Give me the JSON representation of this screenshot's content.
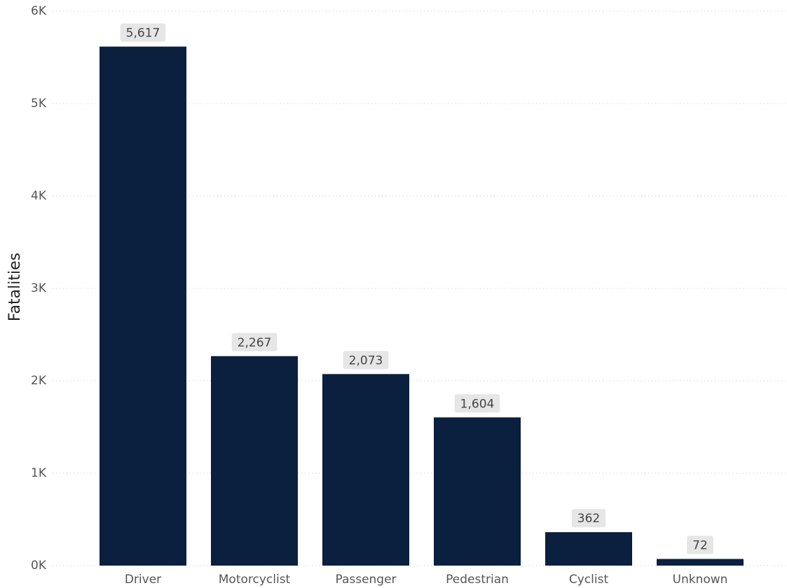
{
  "chart_data": {
    "type": "bar",
    "y_label": "Fatalities",
    "categories": [
      "Driver",
      "Motorcyclist",
      "Passenger",
      "Pedestrian",
      "Cyclist",
      "Unknown"
    ],
    "values": [
      5617,
      2267,
      2073,
      1604,
      362,
      72
    ],
    "value_labels": [
      "5,617",
      "2,267",
      "2,073",
      "1,604",
      "362",
      "72"
    ],
    "color": "#0b1f3f",
    "ylim": [
      0,
      6000
    ],
    "yticks": [
      {
        "value": 0,
        "label": "0K"
      },
      {
        "value": 1000,
        "label": "1K"
      },
      {
        "value": 2000,
        "label": "2K"
      },
      {
        "value": 3000,
        "label": "3K"
      },
      {
        "value": 4000,
        "label": "4K"
      },
      {
        "value": 5000,
        "label": "5K"
      },
      {
        "value": 6000,
        "label": "6K"
      }
    ],
    "grid": true
  }
}
